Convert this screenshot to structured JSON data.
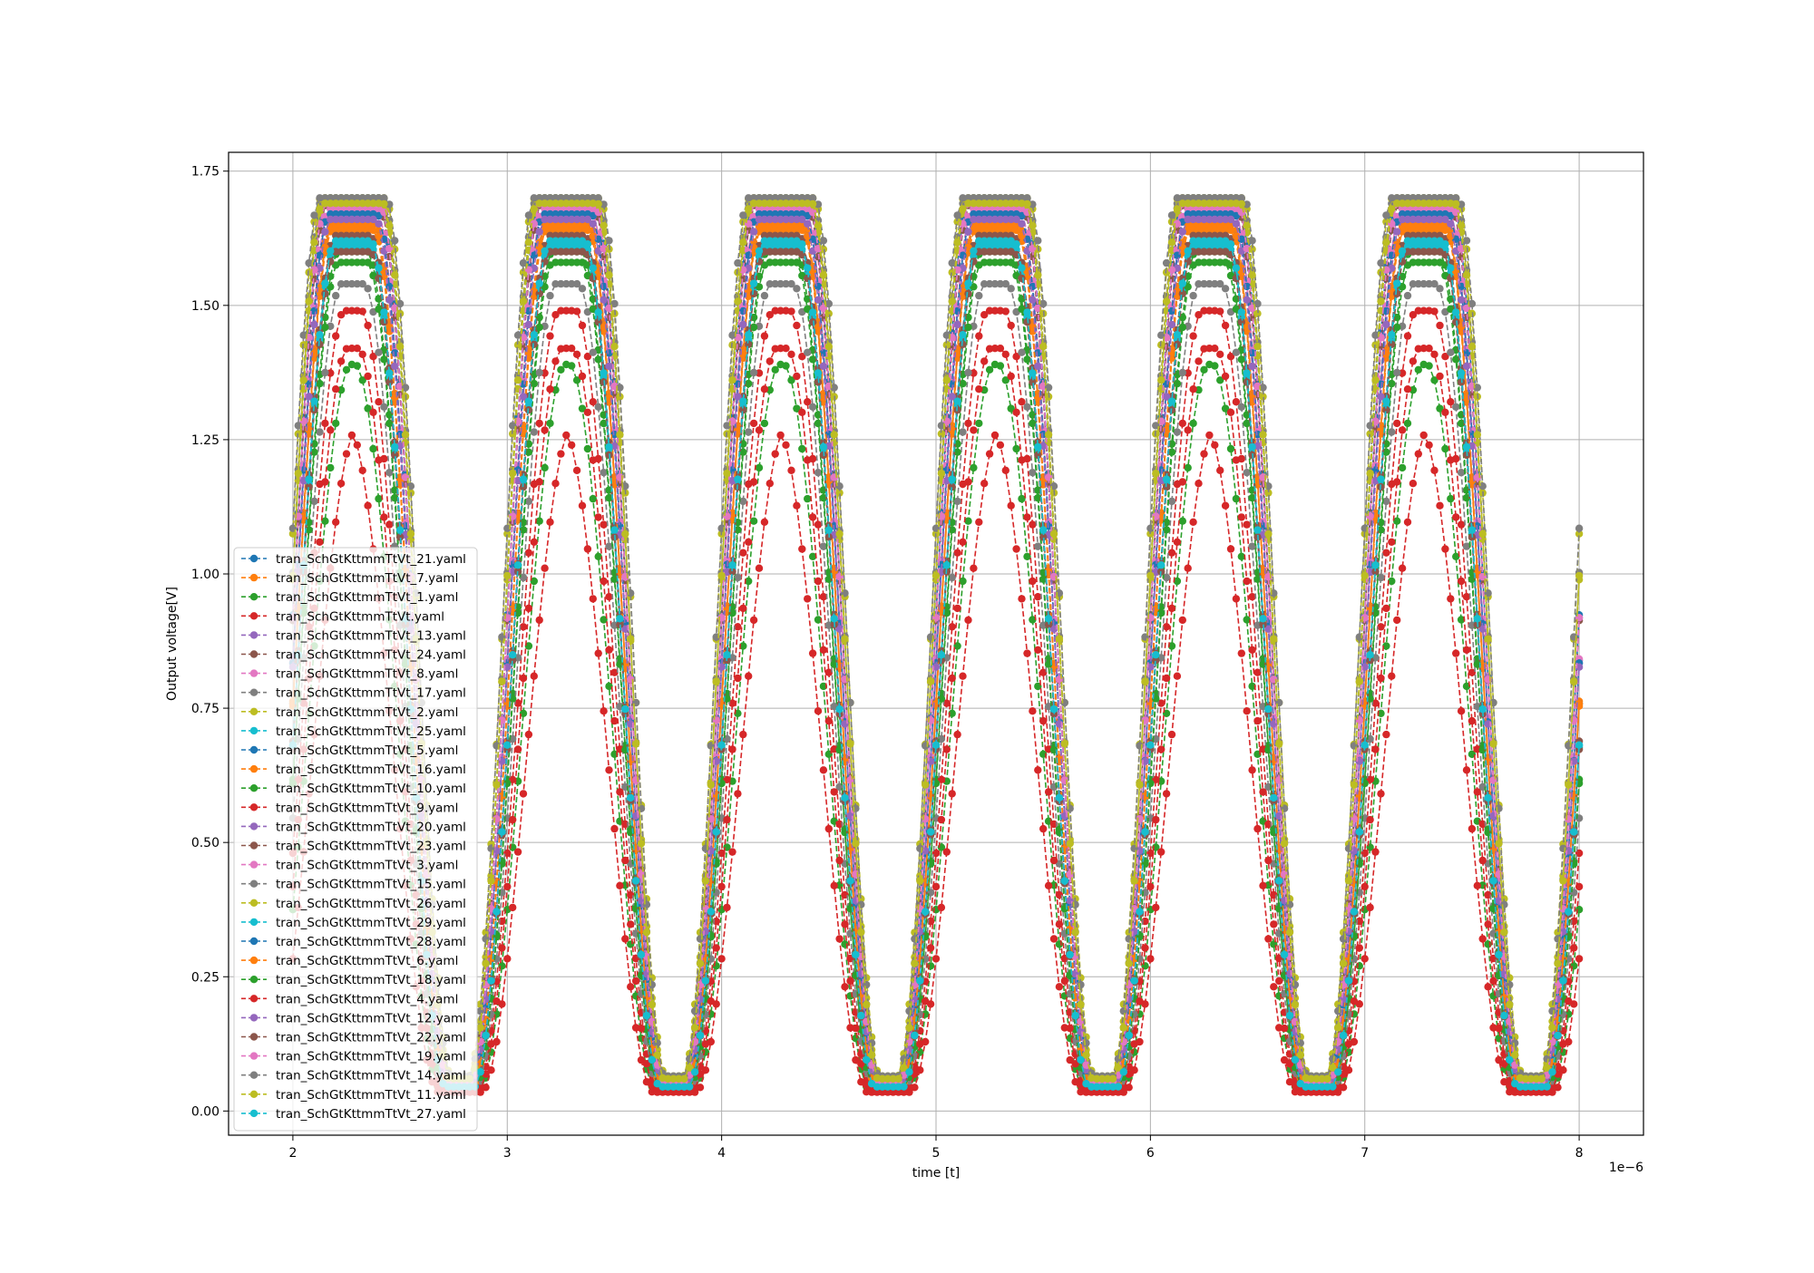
{
  "chart_data": {
    "type": "line",
    "title": "",
    "xlabel": "time [t]",
    "ylabel": "Output voltage[V]",
    "x_offset_label": "1e−6",
    "x_scale": 1e-06,
    "xlim": [
      1.7,
      8.3
    ],
    "ylim": [
      -0.045,
      1.785
    ],
    "x_ticks": [
      2,
      3,
      4,
      5,
      6,
      7,
      8
    ],
    "x_tick_labels": [
      "2",
      "3",
      "4",
      "5",
      "6",
      "7",
      "8"
    ],
    "y_ticks": [
      0.0,
      0.25,
      0.5,
      0.75,
      1.0,
      1.25,
      1.5,
      1.75
    ],
    "y_tick_labels": [
      "0.00",
      "0.25",
      "0.50",
      "0.75",
      "1.00",
      "1.25",
      "1.50",
      "1.75"
    ],
    "grid": true,
    "legend_position": "center-left",
    "line_style": "dashed",
    "marker": "circle",
    "period": 1.0,
    "t_start": 2.0,
    "t_end": 8.0,
    "sample_step": 0.025,
    "series": [
      {
        "name": "tran_SchGtKttmmTtVt_21.yaml",
        "color": "#1f77b4",
        "vmax": 1.7,
        "vmin": 0.055,
        "rise": 0.36,
        "fall": 0.32
      },
      {
        "name": "tran_SchGtKttmmTtVt_7.yaml",
        "color": "#ff7f0e",
        "vmax": 1.66,
        "vmin": 0.05,
        "rise": 0.38,
        "fall": 0.34
      },
      {
        "name": "tran_SchGtKttmmTtVt_1.yaml",
        "color": "#2ca02c",
        "vmax": 1.39,
        "vmin": 0.04,
        "rise": 0.44,
        "fall": 0.4
      },
      {
        "name": "tran_SchGtKttmmTtVt.yaml",
        "color": "#d62728",
        "vmax": 1.27,
        "vmin": 0.035,
        "rise": 0.46,
        "fall": 0.42
      },
      {
        "name": "tran_SchGtKttmmTtVt_13.yaml",
        "color": "#9467bd",
        "vmax": 1.68,
        "vmin": 0.05,
        "rise": 0.37,
        "fall": 0.33
      },
      {
        "name": "tran_SchGtKttmmTtVt_24.yaml",
        "color": "#8c564b",
        "vmax": 1.69,
        "vmin": 0.055,
        "rise": 0.36,
        "fall": 0.33
      },
      {
        "name": "tran_SchGtKttmmTtVt_8.yaml",
        "color": "#e377c2",
        "vmax": 1.67,
        "vmin": 0.05,
        "rise": 0.37,
        "fall": 0.33
      },
      {
        "name": "tran_SchGtKttmmTtVt_17.yaml",
        "color": "#7f7f7f",
        "vmax": 1.7,
        "vmin": 0.06,
        "rise": 0.35,
        "fall": 0.31
      },
      {
        "name": "tran_SchGtKttmmTtVt_2.yaml",
        "color": "#bcbd22",
        "vmax": 1.69,
        "vmin": 0.06,
        "rise": 0.35,
        "fall": 0.32
      },
      {
        "name": "tran_SchGtKttmmTtVt_25.yaml",
        "color": "#17becf",
        "vmax": 1.62,
        "vmin": 0.045,
        "rise": 0.39,
        "fall": 0.35
      },
      {
        "name": "tran_SchGtKttmmTtVt_5.yaml",
        "color": "#1f77b4",
        "vmax": 1.65,
        "vmin": 0.05,
        "rise": 0.38,
        "fall": 0.34
      },
      {
        "name": "tran_SchGtKttmmTtVt_16.yaml",
        "color": "#ff7f0e",
        "vmax": 1.64,
        "vmin": 0.05,
        "rise": 0.38,
        "fall": 0.34
      },
      {
        "name": "tran_SchGtKttmmTtVt_10.yaml",
        "color": "#2ca02c",
        "vmax": 1.6,
        "vmin": 0.045,
        "rise": 0.4,
        "fall": 0.36
      },
      {
        "name": "tran_SchGtKttmmTtVt_9.yaml",
        "color": "#d62728",
        "vmax": 1.49,
        "vmin": 0.04,
        "rise": 0.42,
        "fall": 0.38
      },
      {
        "name": "tran_SchGtKttmmTtVt_20.yaml",
        "color": "#9467bd",
        "vmax": 1.69,
        "vmin": 0.055,
        "rise": 0.36,
        "fall": 0.32
      },
      {
        "name": "tran_SchGtKttmmTtVt_23.yaml",
        "color": "#8c564b",
        "vmax": 1.63,
        "vmin": 0.05,
        "rise": 0.39,
        "fall": 0.35
      },
      {
        "name": "tran_SchGtKttmmTtVt_3.yaml",
        "color": "#e377c2",
        "vmax": 1.68,
        "vmin": 0.055,
        "rise": 0.37,
        "fall": 0.33
      },
      {
        "name": "tran_SchGtKttmmTtVt_15.yaml",
        "color": "#7f7f7f",
        "vmax": 1.54,
        "vmin": 0.045,
        "rise": 0.41,
        "fall": 0.37
      },
      {
        "name": "tran_SchGtKttmmTtVt_26.yaml",
        "color": "#bcbd22",
        "vmax": 1.7,
        "vmin": 0.065,
        "rise": 0.34,
        "fall": 0.31
      },
      {
        "name": "tran_SchGtKttmmTtVt_29.yaml",
        "color": "#17becf",
        "vmax": 1.61,
        "vmin": 0.045,
        "rise": 0.39,
        "fall": 0.35
      },
      {
        "name": "tran_SchGtKttmmTtVt_28.yaml",
        "color": "#1f77b4",
        "vmax": 1.67,
        "vmin": 0.05,
        "rise": 0.37,
        "fall": 0.33
      },
      {
        "name": "tran_SchGtKttmmTtVt_6.yaml",
        "color": "#ff7f0e",
        "vmax": 1.65,
        "vmin": 0.05,
        "rise": 0.38,
        "fall": 0.34
      },
      {
        "name": "tran_SchGtKttmmTtVt_18.yaml",
        "color": "#2ca02c",
        "vmax": 1.58,
        "vmin": 0.045,
        "rise": 0.4,
        "fall": 0.36
      },
      {
        "name": "tran_SchGtKttmmTtVt_4.yaml",
        "color": "#d62728",
        "vmax": 1.42,
        "vmin": 0.038,
        "rise": 0.43,
        "fall": 0.39
      },
      {
        "name": "tran_SchGtKttmmTtVt_12.yaml",
        "color": "#9467bd",
        "vmax": 1.66,
        "vmin": 0.05,
        "rise": 0.37,
        "fall": 0.34
      },
      {
        "name": "tran_SchGtKttmmTtVt_22.yaml",
        "color": "#8c564b",
        "vmax": 1.6,
        "vmin": 0.045,
        "rise": 0.39,
        "fall": 0.35
      },
      {
        "name": "tran_SchGtKttmmTtVt_19.yaml",
        "color": "#e377c2",
        "vmax": 1.69,
        "vmin": 0.055,
        "rise": 0.36,
        "fall": 0.32
      },
      {
        "name": "tran_SchGtKttmmTtVt_14.yaml",
        "color": "#7f7f7f",
        "vmax": 1.7,
        "vmin": 0.065,
        "rise": 0.34,
        "fall": 0.3
      },
      {
        "name": "tran_SchGtKttmmTtVt_11.yaml",
        "color": "#bcbd22",
        "vmax": 1.69,
        "vmin": 0.06,
        "rise": 0.35,
        "fall": 0.31
      },
      {
        "name": "tran_SchGtKttmmTtVt_27.yaml",
        "color": "#17becf",
        "vmax": 1.62,
        "vmin": 0.045,
        "rise": 0.39,
        "fall": 0.35
      }
    ]
  }
}
